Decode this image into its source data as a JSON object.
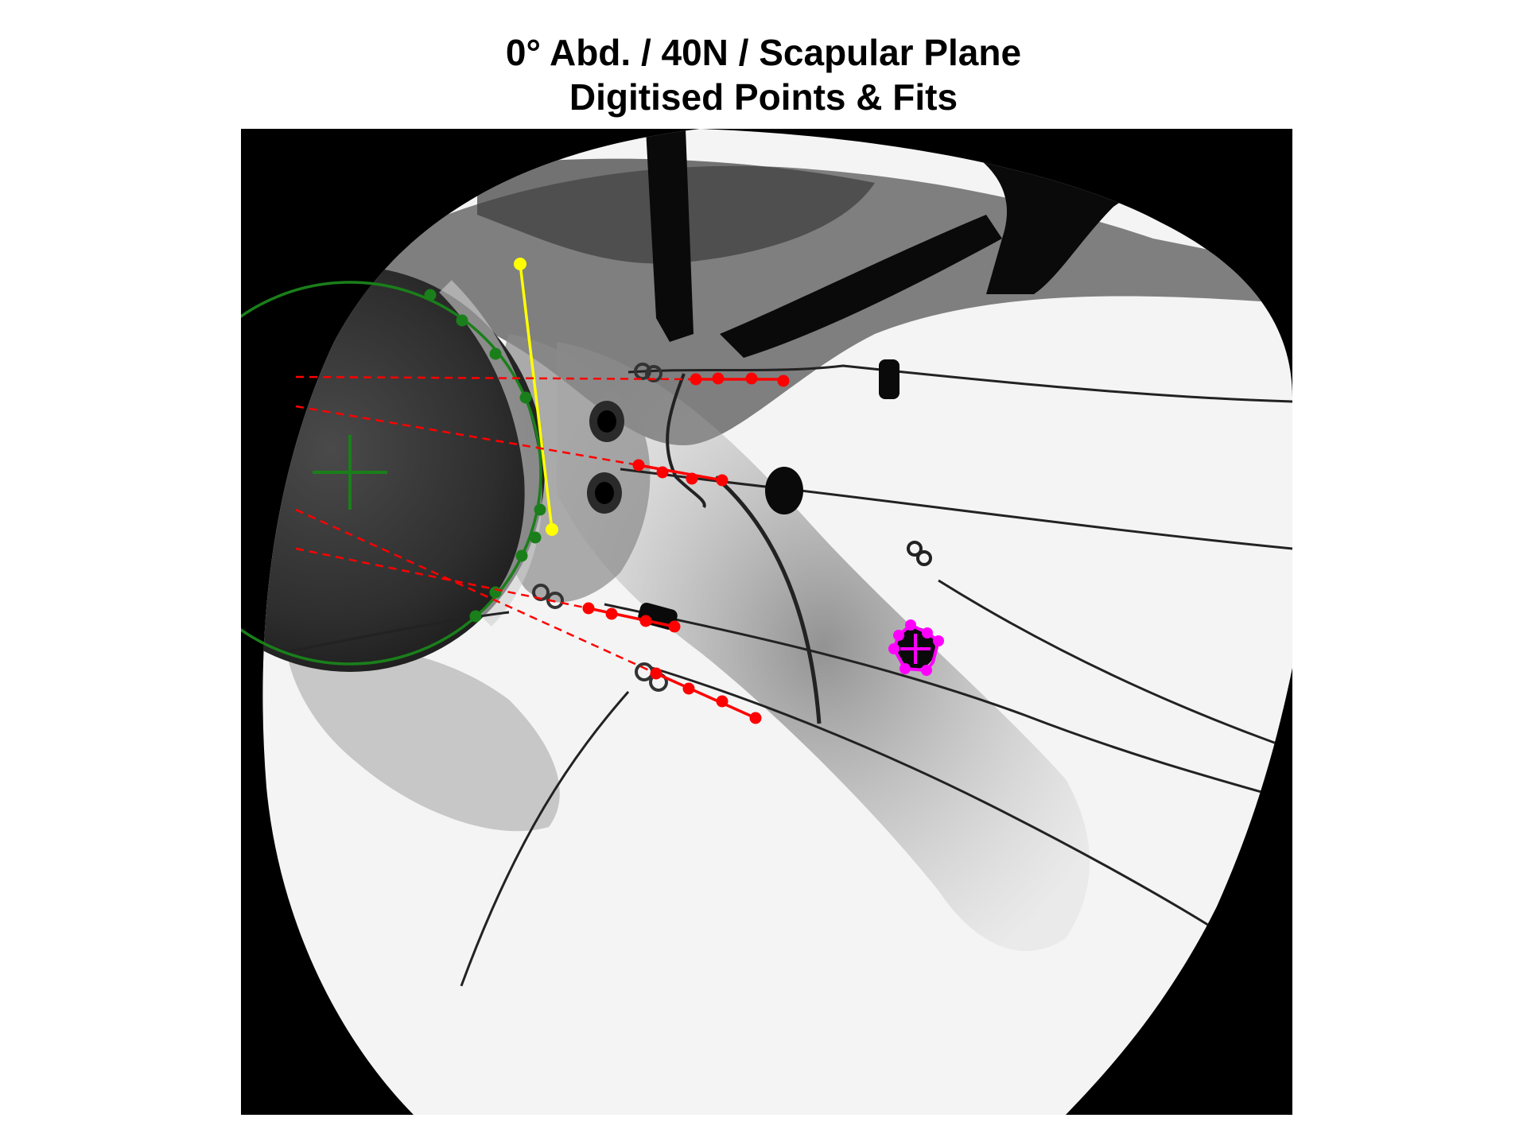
{
  "figure": {
    "title_line1": "0° Abd. / 40N / Scapular Plane",
    "title_line2": "Digitised Points & Fits",
    "image_description_tag": "fluoroscopy-radiograph-shoulder",
    "colors": {
      "background": "#ffffff",
      "image_frame": "#000000",
      "humeral_head_fit": "#1a7f1a",
      "glenoid_line": "#ffff00",
      "wire_points": "#ff0000",
      "marker_fit": "#ff00ff"
    },
    "overlays": {
      "humeral_head_circle": {
        "color_name": "green",
        "point_count": 10
      },
      "glenoid_line": {
        "color_name": "yellow",
        "point_count": 2
      },
      "wire_tracks": {
        "color_name": "red",
        "track_count": 4,
        "points_per_track": 4
      },
      "bead_marker": {
        "color_name": "magenta",
        "point_count": 7
      }
    }
  }
}
